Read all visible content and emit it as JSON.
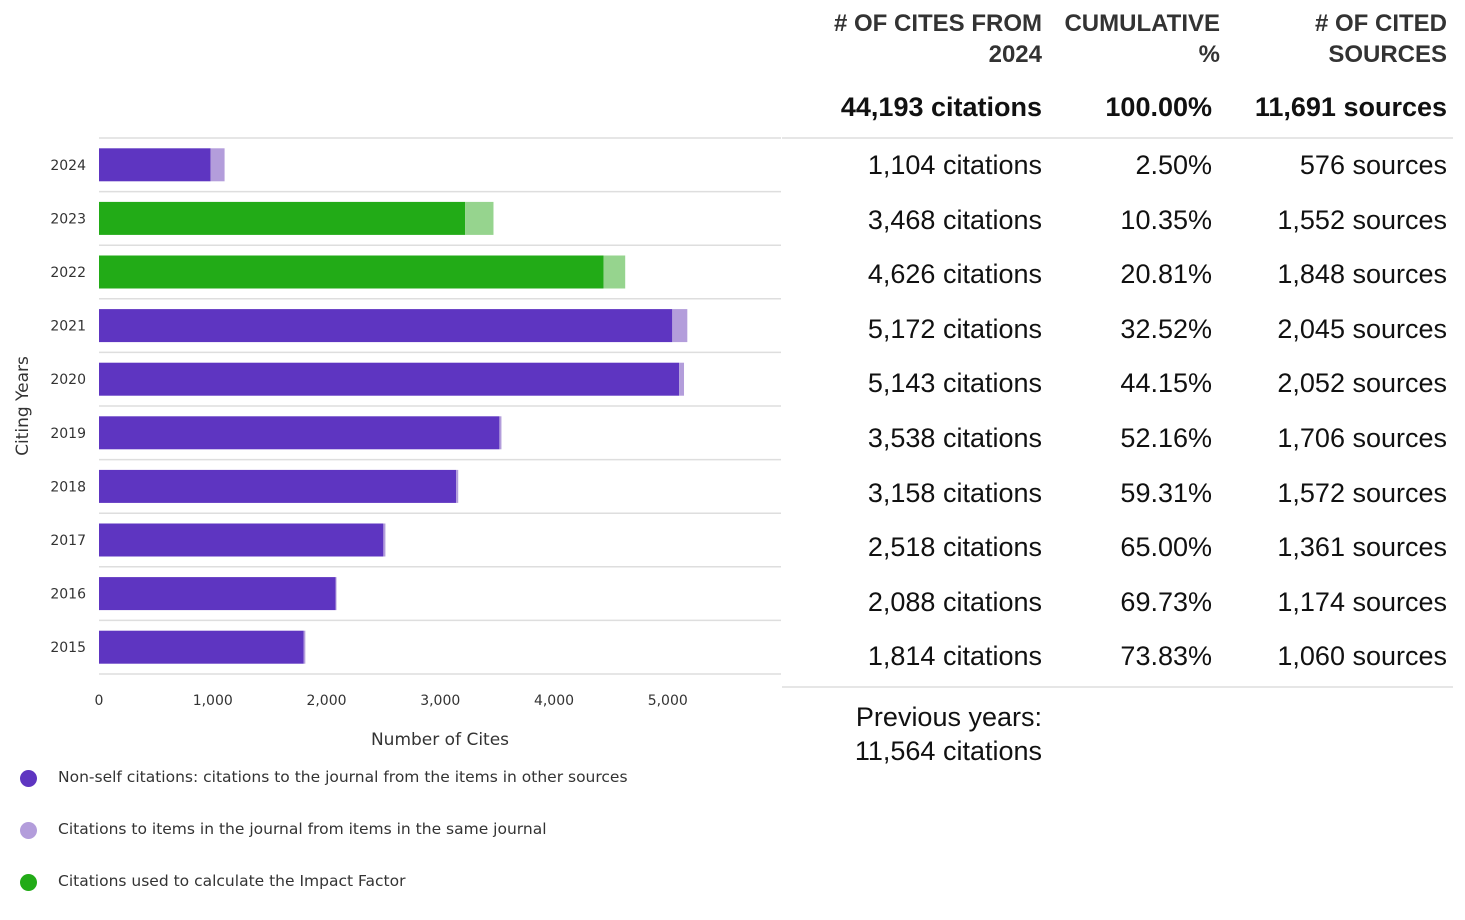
{
  "chart_data": {
    "type": "bar",
    "orientation": "horizontal",
    "stacked": true,
    "categories": [
      "2024",
      "2023",
      "2022",
      "2021",
      "2020",
      "2019",
      "2018",
      "2017",
      "2016",
      "2015"
    ],
    "series": [
      {
        "name": "Non-self citations: citations to the journal from the items in other sources",
        "values": [
          980,
          0,
          0,
          5040,
          5100,
          3520,
          3140,
          2500,
          2080,
          1800
        ]
      },
      {
        "name": "Citations to items in the journal from items in the same journal",
        "values": [
          124,
          0,
          0,
          132,
          43,
          18,
          18,
          18,
          8,
          14
        ]
      },
      {
        "name": "Citations used to calculate the Impact Factor",
        "values": [
          0,
          3218,
          4436,
          0,
          0,
          0,
          0,
          0,
          0,
          0
        ]
      },
      {
        "name": "",
        "values": [
          0,
          250,
          190,
          0,
          0,
          0,
          0,
          0,
          0,
          0
        ]
      }
    ],
    "xlabel": "Number of Cites",
    "ylabel": "Citing Years",
    "xticks": [
      0,
      1000,
      2000,
      3000,
      4000,
      5000
    ],
    "xtick_labels": [
      "0",
      "1,000",
      "2,000",
      "3,000",
      "4,000",
      "5,000"
    ],
    "xlim": [
      0,
      6000
    ],
    "grid": true,
    "legend_position": "bottom-left"
  },
  "colors": {
    "non_self": "#5e35c1",
    "self": "#b39ddb",
    "impact": "#22ab17",
    "impact_self": "#96d48e"
  },
  "legend": [
    {
      "label": "Non-self citations: citations to the journal from the items in other sources",
      "color": "#5e35c1"
    },
    {
      "label": "Citations to items in the journal from items in the same journal",
      "color": "#b39ddb"
    },
    {
      "label": "Citations used to calculate the Impact Factor",
      "color": "#22ab17"
    }
  ],
  "table": {
    "headers": {
      "cites_line1": "# of cites from",
      "cites_line2": "2024",
      "cumulative_line1": "Cumulative",
      "cumulative_line2": "%",
      "sources_line1": "# of cited",
      "sources_line2": "sources"
    },
    "total": {
      "cites": "44,193 citations",
      "cumulative": "100.00%",
      "sources": "11,691 sources"
    },
    "rows": [
      {
        "cites": "1,104 citations",
        "cumulative": "2.50%",
        "sources": "576 sources"
      },
      {
        "cites": "3,468 citations",
        "cumulative": "10.35%",
        "sources": "1,552 sources"
      },
      {
        "cites": "4,626 citations",
        "cumulative": "20.81%",
        "sources": "1,848 sources"
      },
      {
        "cites": "5,172 citations",
        "cumulative": "32.52%",
        "sources": "2,045 sources"
      },
      {
        "cites": "5,143 citations",
        "cumulative": "44.15%",
        "sources": "2,052 sources"
      },
      {
        "cites": "3,538 citations",
        "cumulative": "52.16%",
        "sources": "1,706 sources"
      },
      {
        "cites": "3,158 citations",
        "cumulative": "59.31%",
        "sources": "1,572 sources"
      },
      {
        "cites": "2,518 citations",
        "cumulative": "65.00%",
        "sources": "1,361 sources"
      },
      {
        "cites": "2,088 citations",
        "cumulative": "69.73%",
        "sources": "1,174 sources"
      },
      {
        "cites": "1,814 citations",
        "cumulative": "73.83%",
        "sources": "1,060 sources"
      }
    ],
    "previous_line1": "Previous years:",
    "previous_line2": "11,564 citations"
  }
}
